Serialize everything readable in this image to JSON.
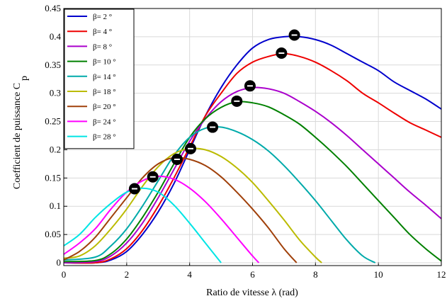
{
  "chart_data": {
    "type": "line",
    "title": "",
    "xlabel": "Ratio de vitesse  λ (rad)",
    "ylabel": "Coefficient de puissance C",
    "ylabel_sub": "p",
    "xlim": [
      0,
      12
    ],
    "ylim": [
      -0.005,
      0.45
    ],
    "xticks": [
      0,
      2,
      4,
      6,
      8,
      10,
      12
    ],
    "yticks": [
      0,
      0.05,
      0.1,
      0.15,
      0.2,
      0.25,
      0.3,
      0.35,
      0.4,
      0.45
    ],
    "grid": true,
    "legend_position": "top-left",
    "series": [
      {
        "name": "β= 2 °",
        "color": "#0000cc",
        "x": [
          0,
          1,
          1.5,
          2,
          2.5,
          3,
          3.5,
          4,
          4.5,
          5,
          5.5,
          6,
          6.5,
          7,
          7.5,
          8,
          8.5,
          9,
          9.5,
          10,
          10.5,
          11,
          11.5,
          12
        ],
        "y": [
          0,
          0,
          0.005,
          0.02,
          0.05,
          0.09,
          0.14,
          0.2,
          0.26,
          0.31,
          0.35,
          0.38,
          0.395,
          0.4,
          0.4,
          0.395,
          0.385,
          0.37,
          0.355,
          0.34,
          0.32,
          0.305,
          0.29,
          0.272
        ],
        "max_point": [
          7.33,
          0.403
        ]
      },
      {
        "name": "β= 4 °",
        "color": "#ee0000",
        "x": [
          0,
          1,
          1.5,
          2,
          2.5,
          3,
          3.5,
          4,
          4.5,
          5,
          5.5,
          6,
          6.5,
          7,
          7.5,
          8,
          8.5,
          9,
          9.5,
          10,
          10.5,
          11,
          11.5,
          12
        ],
        "y": [
          0,
          0,
          0.007,
          0.025,
          0.057,
          0.1,
          0.15,
          0.205,
          0.26,
          0.3,
          0.335,
          0.355,
          0.365,
          0.37,
          0.365,
          0.355,
          0.34,
          0.322,
          0.3,
          0.283,
          0.265,
          0.248,
          0.235,
          0.222
        ],
        "max_point": [
          6.92,
          0.371
        ]
      },
      {
        "name": "β= 8 °",
        "color": "#aa00cc",
        "x": [
          0,
          1,
          1.5,
          2,
          2.5,
          3,
          3.5,
          4,
          4.5,
          5,
          5.5,
          6,
          6.5,
          7,
          7.5,
          8,
          8.5,
          9,
          9.5,
          10,
          10.5,
          11,
          11.5,
          12
        ],
        "y": [
          0,
          0.002,
          0.012,
          0.035,
          0.07,
          0.115,
          0.165,
          0.215,
          0.255,
          0.285,
          0.303,
          0.31,
          0.308,
          0.3,
          0.285,
          0.268,
          0.248,
          0.225,
          0.2,
          0.175,
          0.15,
          0.125,
          0.102,
          0.078
        ],
        "max_point": [
          5.92,
          0.313
        ]
      },
      {
        "name": "β= 10 °",
        "color": "#008000",
        "x": [
          0,
          1,
          1.5,
          2,
          2.5,
          3,
          3.5,
          4,
          4.5,
          5,
          5.5,
          6,
          6.5,
          7,
          7.5,
          8,
          8.5,
          9,
          9.5,
          10,
          10.5,
          11,
          11.5,
          12
        ],
        "y": [
          0.002,
          0.004,
          0.016,
          0.042,
          0.08,
          0.125,
          0.175,
          0.222,
          0.255,
          0.275,
          0.285,
          0.283,
          0.276,
          0.262,
          0.245,
          0.222,
          0.197,
          0.17,
          0.14,
          0.11,
          0.08,
          0.05,
          0.025,
          0.003
        ],
        "max_point": [
          5.5,
          0.286
        ]
      },
      {
        "name": "β= 14 °",
        "color": "#00aaaa",
        "x": [
          0,
          1,
          1.5,
          2,
          2.5,
          3,
          3.5,
          4,
          4.5,
          5,
          5.5,
          6,
          6.5,
          7,
          7.5,
          8,
          8.5,
          9,
          9.5,
          9.9
        ],
        "y": [
          0.005,
          0.01,
          0.03,
          0.06,
          0.1,
          0.145,
          0.19,
          0.222,
          0.238,
          0.24,
          0.232,
          0.218,
          0.198,
          0.172,
          0.142,
          0.11,
          0.075,
          0.04,
          0.012,
          0
        ],
        "max_point": [
          4.73,
          0.24
        ]
      },
      {
        "name": "β= 18 °",
        "color": "#bbbb00",
        "x": [
          0,
          0.5,
          1,
          1.5,
          2,
          2.5,
          3,
          3.5,
          4,
          4.5,
          5,
          5.5,
          6,
          6.5,
          7,
          7.5,
          8,
          8.2
        ],
        "y": [
          0.008,
          0.012,
          0.03,
          0.06,
          0.095,
          0.135,
          0.17,
          0.193,
          0.202,
          0.2,
          0.188,
          0.168,
          0.142,
          0.11,
          0.076,
          0.04,
          0.01,
          0
        ],
        "max_point": [
          4.03,
          0.202
        ]
      },
      {
        "name": "β= 20 °",
        "color": "#a0400a",
        "x": [
          0,
          0.5,
          1,
          1.5,
          2,
          2.5,
          3,
          3.5,
          4,
          4.5,
          5,
          5.5,
          6,
          6.5,
          7,
          7.4
        ],
        "y": [
          0.005,
          0.02,
          0.045,
          0.08,
          0.115,
          0.15,
          0.175,
          0.186,
          0.183,
          0.172,
          0.152,
          0.125,
          0.095,
          0.062,
          0.025,
          0
        ],
        "max_point": [
          3.6,
          0.183
        ]
      },
      {
        "name": "β= 24 °",
        "color": "#ff00ff",
        "x": [
          0,
          0.5,
          1,
          1.5,
          2,
          2.5,
          3,
          3.5,
          4,
          4.5,
          5,
          5.5,
          6,
          6.2
        ],
        "y": [
          0.015,
          0.035,
          0.06,
          0.095,
          0.125,
          0.145,
          0.153,
          0.148,
          0.132,
          0.108,
          0.078,
          0.045,
          0.012,
          0
        ],
        "max_point": [
          2.83,
          0.152
        ]
      },
      {
        "name": "β= 28 °",
        "color": "#00e5e5",
        "x": [
          0,
          0.5,
          1,
          1.5,
          2,
          2.5,
          3,
          3.5,
          4,
          4.5,
          5
        ],
        "y": [
          0.03,
          0.05,
          0.08,
          0.105,
          0.125,
          0.132,
          0.125,
          0.102,
          0.07,
          0.035,
          0
        ],
        "max_point": [
          2.25,
          0.131
        ]
      }
    ]
  }
}
